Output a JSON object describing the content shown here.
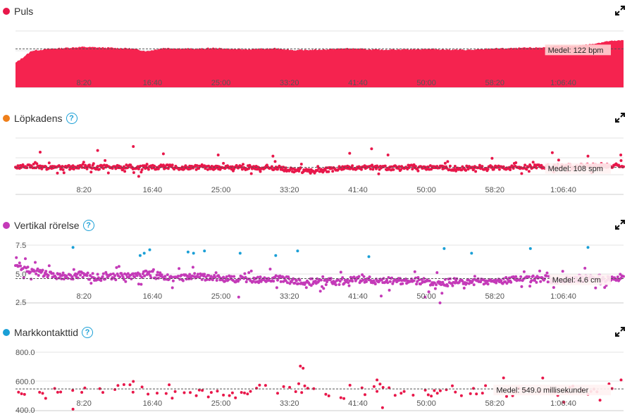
{
  "panels": [
    {
      "title": "Puls",
      "dot_color": "#e8174a",
      "help": false,
      "average_label": "Medel: 122 bpm",
      "y_ticks": [],
      "x_ticks": [
        "8:20",
        "16:40",
        "25:00",
        "33:20",
        "41:40",
        "50:00",
        "58:20",
        "1:06:40"
      ]
    },
    {
      "title": "Löpkadens",
      "dot_color": "#ef7f1a",
      "help": true,
      "help_label": "?",
      "average_label": "Medel: 108 spm",
      "y_ticks": [],
      "x_ticks": [
        "8:20",
        "16:40",
        "25:00",
        "33:20",
        "41:40",
        "50:00",
        "58:20",
        "1:06:40"
      ]
    },
    {
      "title": "Vertikal rörelse",
      "dot_color": "#c43ab8",
      "help": true,
      "help_label": "?",
      "average_label": "Medel: 4.6 cm",
      "y_ticks": [
        "7.5",
        "5.0",
        "2.5"
      ],
      "x_ticks": [
        "8:20",
        "16:40",
        "25:00",
        "33:20",
        "41:40",
        "50:00",
        "58:20",
        "1:06:40"
      ]
    },
    {
      "title": "Markkontakttid",
      "dot_color": "#1a9fd6",
      "help": true,
      "help_label": "?",
      "average_label": "Medel: 549.0 millisekunder",
      "y_ticks": [
        "800.0",
        "600.0",
        "400.0"
      ],
      "x_ticks": [
        "8:20",
        "16:40",
        "25:00",
        "33:20",
        "41:40",
        "50:00",
        "58:20",
        "1:06:40"
      ]
    }
  ],
  "chart_data": [
    {
      "type": "area",
      "x_unit": "seconds",
      "x_range": [
        0,
        4440
      ],
      "y_range": [
        40,
        160
      ],
      "average": 122,
      "color": "#f5234f",
      "x": [
        0,
        120,
        240,
        360,
        480,
        600,
        720,
        840,
        960,
        1080,
        1200,
        1320,
        1440,
        1560,
        1680,
        1800,
        1920,
        2040,
        2160,
        2280,
        2400,
        2520,
        2640,
        2760,
        2880,
        3000,
        3120,
        3240,
        3360,
        3480,
        3600,
        3720,
        3840,
        3960,
        4080,
        4200,
        4320,
        4440
      ],
      "y": [
        92,
        118,
        122,
        124,
        126,
        125,
        124,
        123,
        117,
        124,
        123,
        122,
        124,
        122,
        121,
        122,
        123,
        119,
        120,
        121,
        123,
        122,
        120,
        121,
        121,
        122,
        121,
        120,
        120,
        123,
        123,
        124,
        125,
        128,
        128,
        132,
        138,
        140
      ]
    },
    {
      "type": "scatter",
      "x_unit": "seconds",
      "x_range": [
        0,
        4440
      ],
      "y_range": [
        60,
        160
      ],
      "average": 108,
      "color": "#e8174a",
      "x": [
        0,
        120,
        240,
        360,
        480,
        600,
        720,
        840,
        960,
        1080,
        1200,
        1320,
        1440,
        1560,
        1680,
        1800,
        1920,
        2040,
        2160,
        2280,
        2400,
        2520,
        2640,
        2760,
        2880,
        3000,
        3120,
        3240,
        3360,
        3480,
        3600,
        3720,
        3840,
        3960,
        4080,
        4200,
        4320,
        4440
      ],
      "y": [
        108,
        110,
        108,
        107,
        110,
        108,
        109,
        109,
        107,
        109,
        108,
        108,
        107,
        108,
        107,
        108,
        107,
        103,
        101,
        104,
        106,
        108,
        108,
        107,
        109,
        108,
        107,
        106,
        108,
        108,
        107,
        108,
        109,
        110,
        110,
        111,
        111,
        112
      ],
      "outliers": [
        {
          "x": 180,
          "y": 135
        },
        {
          "x": 600,
          "y": 138
        },
        {
          "x": 860,
          "y": 145
        },
        {
          "x": 900,
          "y": 92
        },
        {
          "x": 1080,
          "y": 132
        },
        {
          "x": 1480,
          "y": 130
        },
        {
          "x": 1880,
          "y": 128
        },
        {
          "x": 2440,
          "y": 133
        },
        {
          "x": 2600,
          "y": 141
        },
        {
          "x": 2720,
          "y": 130
        },
        {
          "x": 3480,
          "y": 124
        },
        {
          "x": 3920,
          "y": 134
        },
        {
          "x": 4180,
          "y": 128
        },
        {
          "x": 4420,
          "y": 130
        }
      ]
    },
    {
      "type": "scatter",
      "x_unit": "seconds",
      "x_range": [
        0,
        4440
      ],
      "y_range": [
        2.5,
        7.5
      ],
      "average": 4.6,
      "color": "#c43ab8",
      "highlight_color": "#1a9fd6",
      "x": [
        0,
        120,
        240,
        360,
        480,
        600,
        720,
        840,
        960,
        1080,
        1200,
        1320,
        1440,
        1560,
        1680,
        1800,
        1920,
        2040,
        2160,
        2280,
        2400,
        2520,
        2640,
        2760,
        2880,
        3000,
        3120,
        3240,
        3360,
        3480,
        3600,
        3720,
        3840,
        3960,
        4080,
        4200,
        4320,
        4440
      ],
      "y": [
        5.8,
        5.3,
        4.9,
        4.8,
        4.9,
        4.7,
        4.8,
        4.8,
        5.0,
        4.8,
        4.6,
        4.8,
        4.7,
        4.6,
        4.5,
        4.5,
        4.6,
        4.4,
        4.3,
        4.3,
        4.4,
        4.5,
        4.4,
        4.4,
        4.5,
        4.3,
        4.2,
        4.4,
        4.3,
        4.4,
        4.5,
        4.5,
        4.6,
        4.5,
        4.6,
        4.7,
        4.6,
        4.7
      ],
      "highlights": [
        {
          "x": 420,
          "y": 7.3
        },
        {
          "x": 910,
          "y": 6.6
        },
        {
          "x": 940,
          "y": 6.8
        },
        {
          "x": 980,
          "y": 7.1
        },
        {
          "x": 1260,
          "y": 6.9
        },
        {
          "x": 1300,
          "y": 6.8
        },
        {
          "x": 1380,
          "y": 7.0
        },
        {
          "x": 1640,
          "y": 6.8
        },
        {
          "x": 1900,
          "y": 6.6
        },
        {
          "x": 2060,
          "y": 7.0
        },
        {
          "x": 2580,
          "y": 6.5
        },
        {
          "x": 3130,
          "y": 7.2
        },
        {
          "x": 3330,
          "y": 6.8
        },
        {
          "x": 3760,
          "y": 7.2
        },
        {
          "x": 4180,
          "y": 7.3
        }
      ],
      "outliers": [
        {
          "x": 3100,
          "y": 2.5
        },
        {
          "x": 2990,
          "y": 3.0
        },
        {
          "x": 1630,
          "y": 3.0
        },
        {
          "x": 2670,
          "y": 3.1
        }
      ]
    },
    {
      "type": "scatter",
      "x_unit": "seconds",
      "x_range": [
        0,
        4440
      ],
      "y_range": [
        400,
        800
      ],
      "average": 549,
      "color": "#e8174a",
      "x": [
        0,
        120,
        240,
        360,
        480,
        600,
        720,
        840,
        960,
        1080,
        1200,
        1320,
        1440,
        1560,
        1680,
        1800,
        1920,
        2040,
        2160,
        2280,
        2400,
        2520,
        2640,
        2760,
        2880,
        3000,
        3120,
        3240,
        3360,
        3480,
        3600,
        3720,
        3840,
        3960,
        4080,
        4200,
        4320,
        4440
      ],
      "y": [
        550,
        480,
        520,
        530,
        545,
        520,
        540,
        560,
        510,
        500,
        530,
        540,
        520,
        500,
        520,
        550,
        530,
        560,
        540,
        520,
        500,
        530,
        560,
        540,
        520,
        510,
        550,
        530,
        540,
        560,
        520,
        540,
        560,
        530,
        510,
        540,
        520,
        530
      ],
      "outliers": [
        {
          "x": 2080,
          "y": 705
        },
        {
          "x": 2100,
          "y": 690
        },
        {
          "x": 860,
          "y": 600
        },
        {
          "x": 2640,
          "y": 610
        },
        {
          "x": 420,
          "y": 410
        },
        {
          "x": 2680,
          "y": 420
        }
      ]
    }
  ]
}
